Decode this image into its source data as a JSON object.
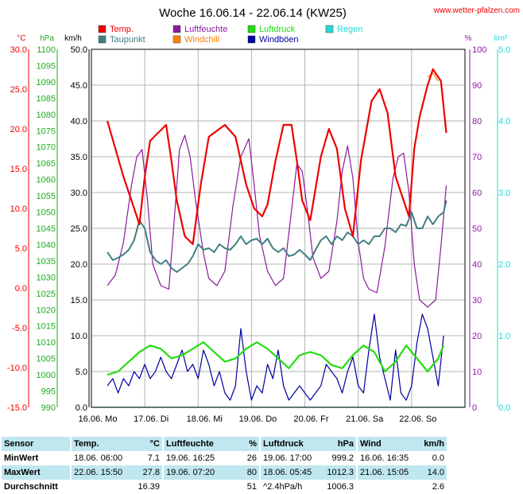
{
  "header": {
    "title": "Woche 16.06.14 - 22.06.14 (KW25)",
    "site": "www.wetter-pfalzen.com"
  },
  "colors": {
    "temp": "#ee0000",
    "dewpoint": "#3f7f7f",
    "humidity": "#8b1a9e",
    "windchill": "#ff8000",
    "pressure": "#22dd11",
    "gust": "#0000a0",
    "rain": "#22d8d8",
    "celsius_axis": "#ee0000",
    "hpa_axis": "#22aa22",
    "kmh_axis": "#000000",
    "percent_axis": "#8b1a9e",
    "rain_axis": "#22d8d8",
    "table_row_bg": "#bfe7ef"
  },
  "legend": [
    {
      "label": "Temp.",
      "key": "temp"
    },
    {
      "label": "Taupunkt",
      "key": "dewpoint"
    },
    {
      "label": "Luftfeuchte",
      "key": "humidity"
    },
    {
      "label": "Windchill",
      "key": "windchill"
    },
    {
      "label": "Luftdruck",
      "key": "pressure"
    },
    {
      "label": "Windböen",
      "key": "gust"
    },
    {
      "label": "Regen",
      "key": "rain"
    }
  ],
  "chart_data": {
    "type": "line",
    "grid": true,
    "units": {
      "celsius": "°C",
      "hpa": "hPa",
      "kmh": "km/h",
      "percent": "%",
      "rain": "l/m²"
    },
    "axes": {
      "celsius": {
        "range": [
          -15,
          30
        ],
        "ticks": [
          "30.0",
          "25.0",
          "20.0",
          "15.0",
          "10.0",
          "5.0",
          "0.0",
          "-5.0",
          "-10.0",
          "-15.0"
        ]
      },
      "hpa": {
        "range": [
          990,
          1100
        ],
        "ticks": [
          "1100",
          "1095",
          "1090",
          "1085",
          "1080",
          "1075",
          "1070",
          "1065",
          "1060",
          "1055",
          "1050",
          "1045",
          "1040",
          "1035",
          "1030",
          "1025",
          "1020",
          "1015",
          "1010",
          "1005",
          "1000",
          "995",
          "990"
        ]
      },
      "kmh": {
        "range": [
          0,
          50
        ],
        "ticks": [
          "50.0",
          "45.0",
          "40.0",
          "35.0",
          "30.0",
          "25.0",
          "20.0",
          "15.0",
          "10.0",
          "5.0",
          "0.0"
        ]
      },
      "percent": {
        "range": [
          0,
          100
        ],
        "ticks": [
          "100",
          "90",
          "80",
          "70",
          "60",
          "50",
          "40",
          "30",
          "20",
          "10",
          "0"
        ]
      },
      "rain": {
        "range": [
          0,
          5
        ],
        "ticks": [
          "5.0",
          "4.0",
          "3.0",
          "2.0",
          "1.0",
          "0.0"
        ]
      }
    },
    "x_labels": [
      "16.06. Mo",
      "17.06. Di",
      "18.06. Mi",
      "19.06. Do",
      "20.06. Fr",
      "21.06. Sa",
      "22.06. So"
    ],
    "x_range_days": [
      0,
      7
    ],
    "series": [
      {
        "name": "Temp.",
        "key": "temp",
        "axis": "celsius",
        "x": [
          0.3,
          0.45,
          0.6,
          0.75,
          0.85,
          0.9,
          1.0,
          1.1,
          1.25,
          1.4,
          1.5,
          1.6,
          1.75,
          1.9,
          2.05,
          2.2,
          2.3,
          2.5,
          2.7,
          2.9,
          3.05,
          3.2,
          3.3,
          3.45,
          3.6,
          3.75,
          3.85,
          3.95,
          4.1,
          4.3,
          4.45,
          4.6,
          4.75,
          4.9,
          5.05,
          5.25,
          5.4,
          5.55,
          5.7,
          5.85,
          5.95,
          6.05,
          6.15,
          6.3,
          6.4,
          6.55,
          6.65
        ],
        "values": [
          21,
          17.5,
          14,
          11,
          9,
          8,
          14,
          18.5,
          19.5,
          20.5,
          16,
          11,
          6.5,
          5.5,
          13,
          19,
          19.5,
          20.5,
          19,
          13,
          10,
          9,
          10.5,
          16,
          20.5,
          20.5,
          16,
          11,
          8.5,
          16.5,
          20,
          17.5,
          10,
          6.5,
          16,
          23.5,
          25,
          22,
          14,
          11,
          9,
          17.5,
          21.5,
          25.5,
          27.5,
          26,
          19.5
        ]
      },
      {
        "name": "Taupunkt",
        "key": "dewpoint",
        "axis": "celsius",
        "x": [
          0.3,
          0.4,
          0.5,
          0.6,
          0.7,
          0.8,
          0.9,
          1.0,
          1.1,
          1.2,
          1.3,
          1.4,
          1.5,
          1.6,
          1.7,
          1.8,
          1.9,
          2.0,
          2.1,
          2.2,
          2.3,
          2.4,
          2.5,
          2.6,
          2.7,
          2.8,
          2.9,
          3.0,
          3.1,
          3.2,
          3.3,
          3.4,
          3.5,
          3.6,
          3.7,
          3.8,
          3.9,
          4.0,
          4.1,
          4.2,
          4.3,
          4.4,
          4.5,
          4.6,
          4.7,
          4.8,
          4.9,
          5.0,
          5.1,
          5.2,
          5.3,
          5.4,
          5.5,
          5.6,
          5.7,
          5.8,
          5.9,
          6.0,
          6.1,
          6.2,
          6.3,
          6.4,
          6.5,
          6.6,
          6.65
        ],
        "values": [
          4.5,
          3.5,
          3.8,
          4.2,
          4.8,
          6,
          8.5,
          7.5,
          4.5,
          3.5,
          3,
          3.5,
          2.5,
          2,
          2.5,
          3,
          4,
          5.5,
          4.8,
          5,
          4.5,
          5.5,
          5,
          4.8,
          5.5,
          6.5,
          5.5,
          6,
          6.2,
          5.5,
          6.2,
          5,
          4.5,
          5,
          4,
          4.2,
          4.8,
          4.2,
          3.5,
          4.8,
          6,
          6.5,
          5.5,
          6.5,
          6,
          7,
          6.5,
          5.5,
          6,
          5.5,
          6.5,
          6.5,
          7.5,
          7.5,
          7,
          8,
          7.8,
          9.5,
          7.5,
          7.5,
          9,
          8,
          9,
          9.5,
          11
        ]
      },
      {
        "name": "Luftfeuchte",
        "key": "humidity",
        "axis": "percent",
        "x": [
          0.3,
          0.45,
          0.6,
          0.75,
          0.85,
          0.95,
          1.05,
          1.15,
          1.3,
          1.45,
          1.55,
          1.65,
          1.75,
          1.85,
          1.95,
          2.1,
          2.2,
          2.35,
          2.5,
          2.65,
          2.8,
          2.95,
          3.05,
          3.15,
          3.3,
          3.45,
          3.6,
          3.75,
          3.85,
          3.95,
          4.05,
          4.15,
          4.3,
          4.45,
          4.6,
          4.7,
          4.8,
          4.9,
          5.0,
          5.1,
          5.2,
          5.35,
          5.5,
          5.65,
          5.75,
          5.85,
          5.95,
          6.05,
          6.15,
          6.3,
          6.45,
          6.55,
          6.65
        ],
        "values": [
          34,
          37,
          46,
          62,
          70,
          72,
          58,
          40,
          34,
          33,
          52,
          72,
          76,
          70,
          58,
          43,
          36,
          34,
          38,
          56,
          70,
          75,
          62,
          48,
          38,
          34,
          36,
          55,
          68,
          66,
          55,
          42,
          36,
          38,
          52,
          66,
          73,
          64,
          46,
          36,
          33,
          32,
          45,
          64,
          70,
          71,
          60,
          40,
          30,
          28,
          30,
          45,
          62
        ]
      },
      {
        "name": "Windchill",
        "key": "windchill",
        "axis": "celsius",
        "x": [
          6.3,
          6.4,
          6.5
        ],
        "values": [
          26.5,
          27,
          26
        ]
      },
      {
        "name": "Luftdruck",
        "key": "pressure",
        "axis": "hpa",
        "x": [
          0.3,
          0.5,
          0.7,
          0.9,
          1.1,
          1.3,
          1.5,
          1.7,
          1.9,
          2.1,
          2.3,
          2.5,
          2.7,
          2.9,
          3.1,
          3.3,
          3.5,
          3.7,
          3.9,
          4.1,
          4.3,
          4.5,
          4.7,
          4.9,
          5.1,
          5.3,
          5.5,
          5.7,
          5.9,
          6.1,
          6.3,
          6.5,
          6.6
        ],
        "values": [
          1000,
          1001,
          1004,
          1007,
          1009,
          1008,
          1005,
          1006,
          1008,
          1010,
          1007,
          1004,
          1005,
          1008,
          1010,
          1008,
          1005,
          1002,
          1006,
          1007,
          1006,
          1003,
          1002,
          1006,
          1009,
          1007,
          1001,
          1004,
          1009,
          1005,
          1001,
          1005,
          1009
        ]
      },
      {
        "name": "Windböen",
        "key": "gust",
        "axis": "kmh",
        "x": [
          0.3,
          0.4,
          0.5,
          0.6,
          0.7,
          0.8,
          0.9,
          1.0,
          1.1,
          1.2,
          1.3,
          1.4,
          1.5,
          1.6,
          1.7,
          1.8,
          1.9,
          2.0,
          2.1,
          2.2,
          2.3,
          2.4,
          2.5,
          2.6,
          2.7,
          2.8,
          2.9,
          3.0,
          3.1,
          3.2,
          3.3,
          3.4,
          3.5,
          3.6,
          3.7,
          3.8,
          3.9,
          4.0,
          4.1,
          4.2,
          4.3,
          4.4,
          4.5,
          4.6,
          4.7,
          4.8,
          4.9,
          5.0,
          5.1,
          5.2,
          5.3,
          5.4,
          5.5,
          5.6,
          5.7,
          5.8,
          5.9,
          6.0,
          6.1,
          6.2,
          6.3,
          6.4,
          6.5,
          6.6
        ],
        "values": [
          3,
          4,
          2,
          4,
          3,
          5,
          4,
          6,
          4,
          5,
          7,
          5,
          4,
          6,
          8,
          5,
          6,
          4,
          8,
          6,
          3,
          5,
          2,
          1,
          3,
          11,
          5,
          1,
          3,
          2,
          6,
          4,
          8,
          3,
          1,
          2,
          3,
          2,
          1,
          2,
          3,
          6,
          5,
          4,
          2,
          5,
          7,
          3,
          2,
          8,
          13,
          7,
          4,
          1,
          8,
          2,
          1,
          3,
          9,
          13,
          11,
          7,
          3,
          10
        ]
      },
      {
        "name": "Regen",
        "key": "rain",
        "axis": "rain",
        "x": [
          0.0,
          7.0
        ],
        "values": [
          0.0,
          0.0
        ]
      }
    ]
  },
  "table": {
    "headers": [
      "Sensor",
      "Temp.",
      "°C",
      "Luftfeuchte",
      "%",
      "Luftdruck",
      "hPa",
      "Wind",
      "km/h"
    ],
    "rows": [
      [
        "MinWert",
        "18.06.  06:00",
        "7.1",
        "19.06.  16:25",
        "26",
        "19.06.  17:00",
        "999.2",
        "16.06.  16:35",
        "0.0"
      ],
      [
        "MaxWert",
        "22.06.  15:50",
        "27.8",
        "19.06.  07:20",
        "80",
        "18.06.  05:45",
        "1012.3",
        "21.06.  15:05",
        "14.0"
      ],
      [
        "Durchschnitt",
        "",
        "16.39",
        "",
        "51",
        "^2.4hPa/h",
        "1006.3",
        "",
        "2.6"
      ]
    ]
  }
}
